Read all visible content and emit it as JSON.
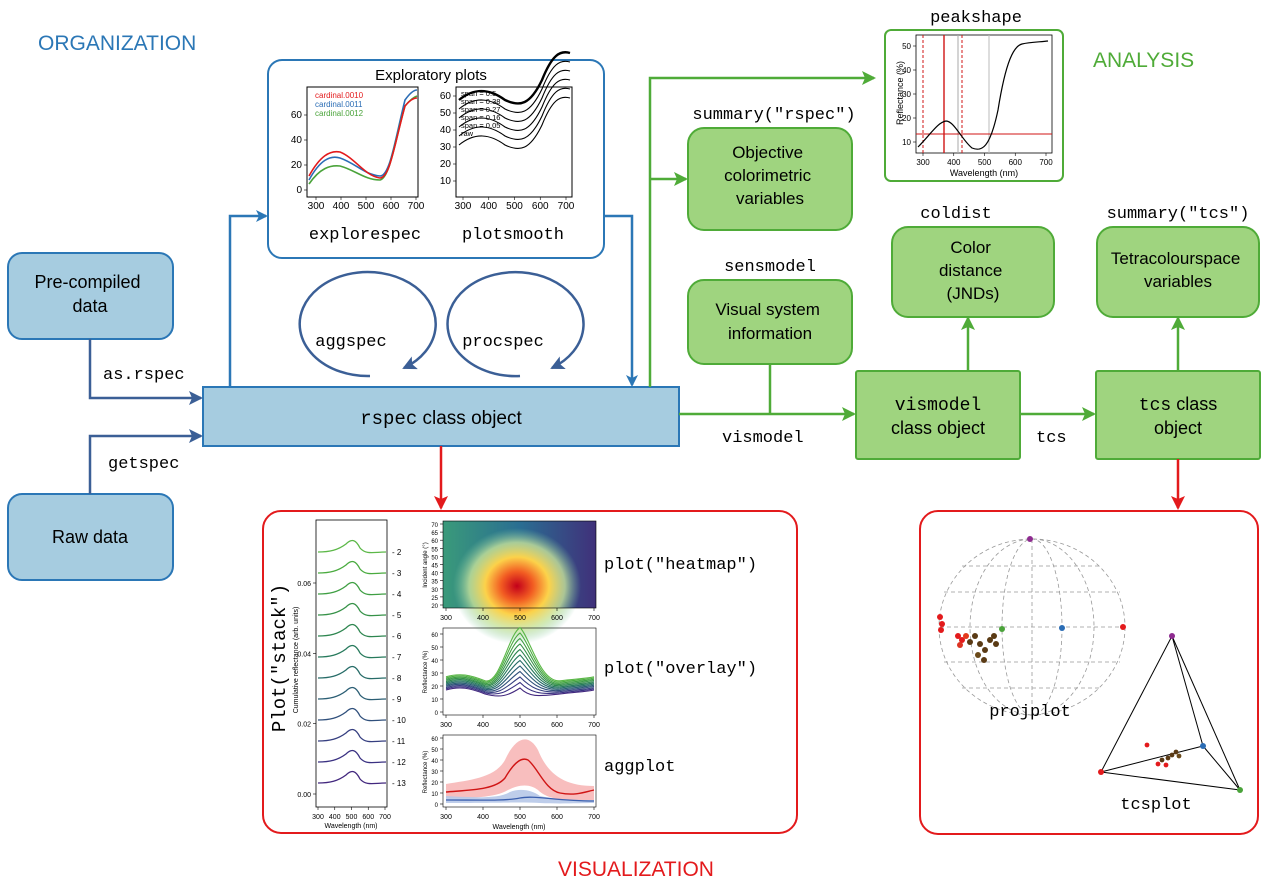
{
  "sections": {
    "organization": "ORGANIZATION",
    "analysis": "ANALYSIS",
    "visualization": "VISUALIZATION"
  },
  "colors": {
    "organization": "#2b77b6",
    "analysis": "#4fab38",
    "visualization": "#e31a1c",
    "blue_fill": "#a6cce0",
    "green_fill": "#9fd47f"
  },
  "nodes": {
    "precompiled": "Pre-compiled\ndata",
    "raw": "Raw data",
    "rspec_code": "rspec",
    "rspec_text": " class object",
    "objective": "Objective\ncolorimetric\nvariables",
    "visual_system": "Visual system\ninformation",
    "color_distance": "Color\ndistance\n(JNDs)",
    "tetra": "Tetracolourspace\nvariables",
    "vismodel_code": "vismodel",
    "vismodel_text": "class object",
    "tcs_code": "tcs",
    "tcs_text": " class\nobject"
  },
  "functions": {
    "as_rspec": "as.rspec",
    "getspec": "getspec",
    "aggspec": "aggspec",
    "procspec": "procspec",
    "summary_rspec": "summary(\"rspec\")",
    "sensmodel": "sensmodel",
    "coldist": "coldist",
    "summary_tcs": "summary(\"tcs\")",
    "peakshape": "peakshape",
    "vismodel": "vismodel",
    "tcs": "tcs"
  },
  "exploratory": {
    "title": "Exploratory plots",
    "explorespec": "explorespec",
    "plotsmooth": "plotsmooth",
    "legend": [
      "cardinal.0010",
      "cardinal.0011",
      "cardinal.0012"
    ],
    "span_legend": [
      "span = 0.5",
      "span = 0.38",
      "span = 0.27",
      "span = 0.16",
      "span = 0.05",
      "raw"
    ],
    "x_ticks": [
      "300",
      "400",
      "500",
      "600",
      "700"
    ],
    "left_y_ticks": [
      "0",
      "20",
      "40",
      "60"
    ],
    "right_y_ticks": [
      "10",
      "20",
      "30",
      "40",
      "50",
      "60"
    ]
  },
  "peakshape_plot": {
    "ylabel": "Reflectance (%)",
    "xlabel": "Wavelength (nm)",
    "x_ticks": [
      "300",
      "400",
      "500",
      "600",
      "700"
    ],
    "y_ticks": [
      "10",
      "20",
      "30",
      "40",
      "50"
    ]
  },
  "visualization": {
    "stack_label": "Plot(\"stack\")",
    "heatmap_label": "plot(\"heatmap\")",
    "overlay_label": "plot(\"overlay\")",
    "aggplot_label": "aggplot",
    "projplot_label": "projplot",
    "tcsplot_label": "tcsplot",
    "stack_ylabel": "Cumulative reflectance (arb. units)",
    "stack_xlabel": "Wavelength (nm)",
    "stack_y_ticks": [
      "0.00",
      "0.02",
      "0.04",
      "0.06"
    ],
    "stack_x_ticks": [
      "300",
      "400",
      "500",
      "600",
      "700"
    ],
    "stack_labels": [
      "2",
      "3",
      "4",
      "5",
      "6",
      "7",
      "8",
      "9",
      "10",
      "11",
      "12",
      "13"
    ],
    "heatmap_ylabel": "Incident angle (°)",
    "heatmap_y_ticks": [
      "20",
      "25",
      "30",
      "35",
      "40",
      "45",
      "50",
      "55",
      "60",
      "65",
      "70"
    ],
    "heatmap_x_ticks": [
      "300",
      "400",
      "500",
      "600",
      "700"
    ],
    "overlay_ylabel": "Reflectance (%)",
    "overlay_y_ticks": [
      "0",
      "10",
      "20",
      "30",
      "40",
      "50",
      "60"
    ],
    "overlay_x_ticks": [
      "300",
      "400",
      "500",
      "600",
      "700"
    ],
    "agg_ylabel": "Reflectance (%)",
    "agg_y_ticks": [
      "0",
      "10",
      "20",
      "30",
      "40",
      "50",
      "60"
    ],
    "agg_x_ticks": [
      "300",
      "400",
      "500",
      "600",
      "700"
    ],
    "agg_xlabel": "Wavelength (nm)"
  }
}
